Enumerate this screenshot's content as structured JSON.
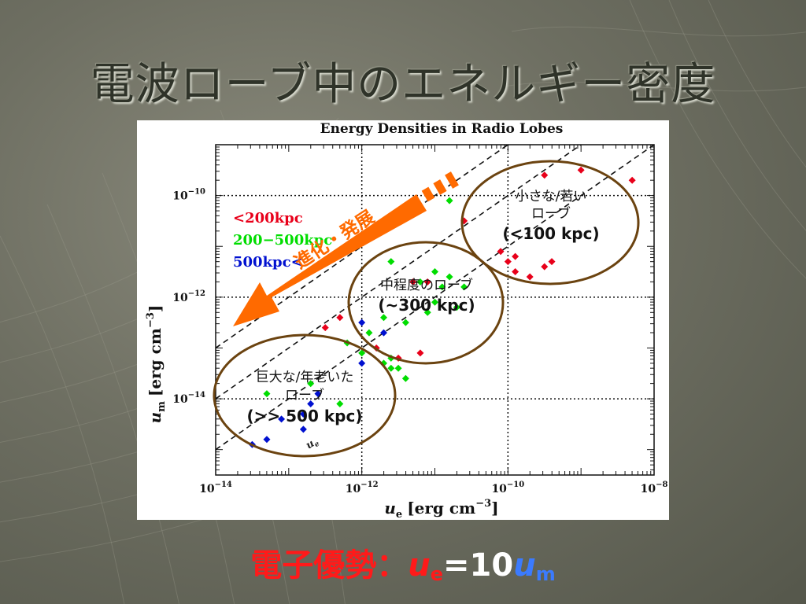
{
  "slide": {
    "title": "電波ローブ中のエネルギー密度",
    "formula": {
      "prefix": "電子優勢：",
      "u1": "u",
      "u1_sub": "e",
      "eq": "=10",
      "u2": "u",
      "u2_sub": "m"
    },
    "arrow_label": "進化・発展",
    "ellipse_labels": {
      "small": {
        "line1": "小さな/若い",
        "line2": "ローブ",
        "line3": "(<100 kpc)"
      },
      "medium": {
        "line1": "中程度のローブ",
        "line2": "(~300 kpc)"
      },
      "large": {
        "line1": "巨大な/年老いた",
        "line2": "ローブ",
        "line3": "(>> 500 kpc)"
      }
    },
    "colors": {
      "title": "#2f3329",
      "arrow": "#ff6a00",
      "ellipse": "#6b4310",
      "red_series": "#e8001a",
      "green_series": "#00dd00",
      "blue_series": "#0010d0"
    }
  },
  "chart_data": {
    "type": "scatter",
    "title": "Energy Densities in Radio Lobes",
    "xlabel_html": "u",
    "xlabel_sub": "e",
    "xlabel_unit": "[erg cm",
    "xlabel_exp": "−3",
    "xlabel_close": "]",
    "ylabel_html": "u",
    "ylabel_sub": "m",
    "ylabel_unit": "[erg cm",
    "ylabel_exp": "−3",
    "ylabel_close": "]",
    "x_scale": "log",
    "y_scale": "log",
    "xlim_exp": [
      -14,
      -8
    ],
    "ylim_exp": [
      -15.5,
      -9.0
    ],
    "x_ticks": [
      {
        "exp": -14,
        "label": "10",
        "sup": "−14"
      },
      {
        "exp": -12,
        "label": "10",
        "sup": "−12"
      },
      {
        "exp": -10,
        "label": "10",
        "sup": "−10"
      },
      {
        "exp": -8,
        "label": "10",
        "sup": "−8"
      }
    ],
    "y_ticks": [
      {
        "exp": -10,
        "label": "10",
        "sup": "−10"
      },
      {
        "exp": -12,
        "label": "10",
        "sup": "−12"
      },
      {
        "exp": -14,
        "label": "10",
        "sup": "−14"
      }
    ],
    "grid": "dotted major decades",
    "reference_lines_log_offset": [
      -1,
      0,
      1
    ],
    "reference_line_label": "u_e",
    "legend": {
      "placement": "upper-left",
      "entries": [
        {
          "name": "<200kpc",
          "color": "#e8001a"
        },
        {
          "name": "200−500kpc",
          "color": "#00dd00"
        },
        {
          "name": "500kpc<",
          "color": "#0010d0"
        }
      ]
    },
    "series": [
      {
        "name": "<200kpc",
        "color": "#e8001a",
        "points": [
          {
            "x": -9.0,
            "y": -9.5
          },
          {
            "x": -9.5,
            "y": -9.6
          },
          {
            "x": -8.3,
            "y": -9.7
          },
          {
            "x": -10.6,
            "y": -10.5
          },
          {
            "x": -10.1,
            "y": -11.1
          },
          {
            "x": -9.9,
            "y": -11.2
          },
          {
            "x": -10.0,
            "y": -11.3
          },
          {
            "x": -9.5,
            "y": -11.4
          },
          {
            "x": -9.9,
            "y": -11.5
          },
          {
            "x": -9.7,
            "y": -11.6
          },
          {
            "x": -9.4,
            "y": -11.3
          },
          {
            "x": -11.1,
            "y": -11.7
          },
          {
            "x": -11.3,
            "y": -11.7
          },
          {
            "x": -12.3,
            "y": -12.4
          },
          {
            "x": -12.5,
            "y": -12.6
          },
          {
            "x": -11.8,
            "y": -13.0
          },
          {
            "x": -11.5,
            "y": -13.2
          },
          {
            "x": -11.2,
            "y": -13.1
          }
        ]
      },
      {
        "name": "200−500kpc",
        "color": "#00dd00",
        "points": [
          {
            "x": -10.8,
            "y": -10.1
          },
          {
            "x": -11.6,
            "y": -11.3
          },
          {
            "x": -11.2,
            "y": -11.7
          },
          {
            "x": -11.0,
            "y": -11.5
          },
          {
            "x": -10.8,
            "y": -11.6
          },
          {
            "x": -10.6,
            "y": -11.8
          },
          {
            "x": -10.9,
            "y": -11.8
          },
          {
            "x": -10.7,
            "y": -12.2
          },
          {
            "x": -11.0,
            "y": -12.1
          },
          {
            "x": -11.1,
            "y": -12.3
          },
          {
            "x": -11.4,
            "y": -12.5
          },
          {
            "x": -11.7,
            "y": -12.4
          },
          {
            "x": -11.9,
            "y": -12.7
          },
          {
            "x": -12.2,
            "y": -12.9
          },
          {
            "x": -11.5,
            "y": -13.4
          },
          {
            "x": -11.6,
            "y": -13.4
          },
          {
            "x": -11.6,
            "y": -13.2
          },
          {
            "x": -11.7,
            "y": -13.3
          },
          {
            "x": -12.0,
            "y": -13.1
          },
          {
            "x": -11.4,
            "y": -13.6
          },
          {
            "x": -12.7,
            "y": -13.7
          },
          {
            "x": -13.3,
            "y": -13.9
          },
          {
            "x": -12.3,
            "y": -14.1
          }
        ]
      },
      {
        "name": "500kpc<",
        "color": "#0010d0",
        "points": [
          {
            "x": -12.0,
            "y": -12.5
          },
          {
            "x": -11.7,
            "y": -12.7
          },
          {
            "x": -12.0,
            "y": -13.3
          },
          {
            "x": -12.7,
            "y": -14.1
          },
          {
            "x": -12.8,
            "y": -14.3
          },
          {
            "x": -13.1,
            "y": -14.4
          },
          {
            "x": -12.8,
            "y": -14.6
          },
          {
            "x": -13.3,
            "y": -14.8
          },
          {
            "x": -12.6,
            "y": -13.9
          },
          {
            "x": -13.5,
            "y": -14.9
          }
        ]
      }
    ]
  }
}
